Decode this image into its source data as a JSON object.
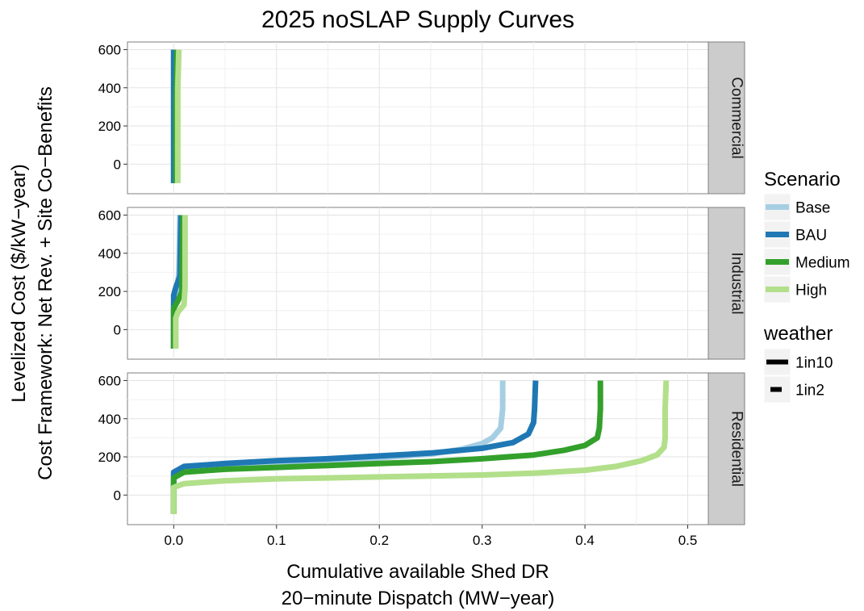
{
  "chart_data": {
    "type": "line",
    "title": "2025 noSLAP Supply Curves",
    "xlabel": [
      "Cumulative available Shed DR",
      "20−minute Dispatch (MW−year)"
    ],
    "ylabel": [
      "Levelized Cost ($/kW−year)",
      "Cost Framework: Net Rev. + Site Co−Benefits"
    ],
    "xlim": [
      -0.045,
      0.52
    ],
    "ylim": [
      -155,
      640
    ],
    "x_ticks": [
      0.0,
      0.1,
      0.2,
      0.3,
      0.4,
      0.5
    ],
    "x_tick_labels": [
      "0.0",
      "0.1",
      "0.2",
      "0.3",
      "0.4",
      "0.5"
    ],
    "y_ticks": [
      0,
      200,
      400,
      600
    ],
    "y_tick_labels": [
      "0",
      "200",
      "400",
      "600"
    ],
    "grid": true,
    "legend_position": "right",
    "panels": [
      {
        "label": "Commercial",
        "series": [
          {
            "name": "Base",
            "color": "#a6cee3",
            "points": [
              [
                0.0,
                -100
              ],
              [
                0.0,
                300
              ],
              [
                0.0,
                600
              ]
            ]
          },
          {
            "name": "BAU",
            "color": "#1f78b4",
            "points": [
              [
                0.0,
                -100
              ],
              [
                0.0,
                350
              ],
              [
                0.0,
                600
              ]
            ]
          },
          {
            "name": "Medium",
            "color": "#33a02c",
            "points": [
              [
                0.002,
                -100
              ],
              [
                0.002,
                300
              ],
              [
                0.003,
                600
              ]
            ]
          },
          {
            "name": "High",
            "color": "#b2df8a",
            "points": [
              [
                0.004,
                -100
              ],
              [
                0.004,
                300
              ],
              [
                0.004,
                400
              ],
              [
                0.005,
                600
              ]
            ]
          }
        ]
      },
      {
        "label": "Industrial",
        "series": [
          {
            "name": "Base",
            "color": "#a6cee3",
            "points": [
              [
                0.0,
                -100
              ],
              [
                0.0,
                130
              ],
              [
                0.003,
                200
              ],
              [
                0.005,
                300
              ],
              [
                0.006,
                600
              ]
            ]
          },
          {
            "name": "BAU",
            "color": "#1f78b4",
            "points": [
              [
                0.0,
                -100
              ],
              [
                0.0,
                180
              ],
              [
                0.002,
                220
              ],
              [
                0.006,
                280
              ],
              [
                0.007,
                600
              ]
            ]
          },
          {
            "name": "Medium",
            "color": "#33a02c",
            "points": [
              [
                0.0,
                -100
              ],
              [
                0.0,
                110
              ],
              [
                0.004,
                150
              ],
              [
                0.008,
                200
              ],
              [
                0.009,
                600
              ]
            ]
          },
          {
            "name": "High",
            "color": "#b2df8a",
            "points": [
              [
                0.002,
                -100
              ],
              [
                0.002,
                60
              ],
              [
                0.004,
                90
              ],
              [
                0.01,
                130
              ],
              [
                0.011,
                220
              ],
              [
                0.011,
                600
              ]
            ]
          }
        ]
      },
      {
        "label": "Residential",
        "series": [
          {
            "name": "Base",
            "color": "#a6cee3",
            "points": [
              [
                0.0,
                -100
              ],
              [
                0.0,
                110
              ],
              [
                0.01,
                140
              ],
              [
                0.05,
                160
              ],
              [
                0.1,
                170
              ],
              [
                0.15,
                180
              ],
              [
                0.2,
                195
              ],
              [
                0.25,
                215
              ],
              [
                0.28,
                240
              ],
              [
                0.3,
                270
              ],
              [
                0.31,
                300
              ],
              [
                0.318,
                350
              ],
              [
                0.32,
                450
              ],
              [
                0.32,
                600
              ]
            ]
          },
          {
            "name": "BAU",
            "color": "#1f78b4",
            "points": [
              [
                0.0,
                -100
              ],
              [
                0.0,
                120
              ],
              [
                0.01,
                150
              ],
              [
                0.05,
                165
              ],
              [
                0.1,
                180
              ],
              [
                0.15,
                190
              ],
              [
                0.2,
                205
              ],
              [
                0.25,
                220
              ],
              [
                0.3,
                245
              ],
              [
                0.33,
                275
              ],
              [
                0.345,
                320
              ],
              [
                0.35,
                380
              ],
              [
                0.351,
                450
              ],
              [
                0.352,
                600
              ]
            ]
          },
          {
            "name": "Medium",
            "color": "#33a02c",
            "points": [
              [
                0.0,
                -100
              ],
              [
                0.0,
                90
              ],
              [
                0.01,
                120
              ],
              [
                0.05,
                135
              ],
              [
                0.1,
                145
              ],
              [
                0.15,
                155
              ],
              [
                0.2,
                165
              ],
              [
                0.25,
                175
              ],
              [
                0.3,
                190
              ],
              [
                0.35,
                210
              ],
              [
                0.38,
                235
              ],
              [
                0.4,
                260
              ],
              [
                0.412,
                300
              ],
              [
                0.414,
                350
              ],
              [
                0.415,
                450
              ],
              [
                0.415,
                600
              ]
            ]
          },
          {
            "name": "High",
            "color": "#b2df8a",
            "points": [
              [
                0.0,
                -100
              ],
              [
                0.0,
                40
              ],
              [
                0.01,
                60
              ],
              [
                0.05,
                75
              ],
              [
                0.1,
                85
              ],
              [
                0.15,
                90
              ],
              [
                0.2,
                95
              ],
              [
                0.3,
                105
              ],
              [
                0.35,
                115
              ],
              [
                0.4,
                130
              ],
              [
                0.43,
                150
              ],
              [
                0.455,
                180
              ],
              [
                0.47,
                210
              ],
              [
                0.477,
                250
              ],
              [
                0.478,
                300
              ],
              [
                0.478,
                450
              ],
              [
                0.479,
                600
              ]
            ]
          }
        ]
      }
    ],
    "legend": {
      "scenario_title": "Scenario",
      "scenarios": [
        {
          "name": "Base",
          "color": "#a6cee3"
        },
        {
          "name": "BAU",
          "color": "#1f78b4"
        },
        {
          "name": "Medium",
          "color": "#33a02c"
        },
        {
          "name": "High",
          "color": "#b2df8a"
        }
      ],
      "weather_title": "weather",
      "weather": [
        {
          "name": "1in10",
          "style": "solid-thick"
        },
        {
          "name": "1in2",
          "style": "short"
        }
      ]
    }
  }
}
